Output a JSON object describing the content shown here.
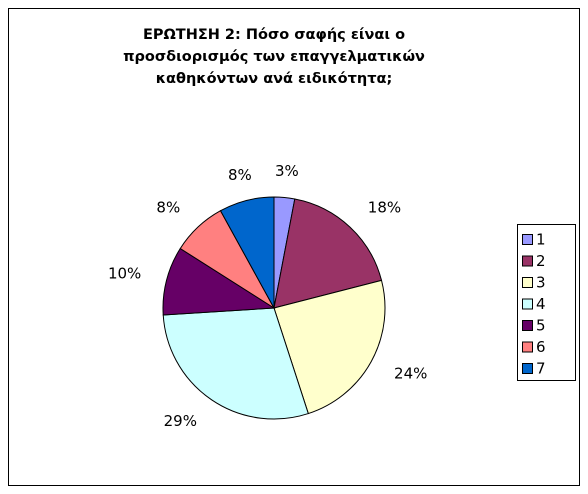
{
  "chart_data": {
    "type": "pie",
    "title": "ΕΡΩΤΗΣΗ 2: Πόσο σαφής είναι ο προσδιορισμός των επαγγελματικών καθηκόντων ανά ειδικότητα;",
    "categories": [
      "1",
      "2",
      "3",
      "4",
      "5",
      "6",
      "7"
    ],
    "values": [
      3,
      18,
      24,
      29,
      10,
      8,
      8
    ],
    "value_labels": [
      "3%",
      "18%",
      "24%",
      "29%",
      "10%",
      "8%",
      "8%"
    ],
    "colors": [
      "#9999ff",
      "#993366",
      "#ffffcc",
      "#ccffff",
      "#660066",
      "#ff8080",
      "#0066cc"
    ],
    "legend": "right"
  }
}
